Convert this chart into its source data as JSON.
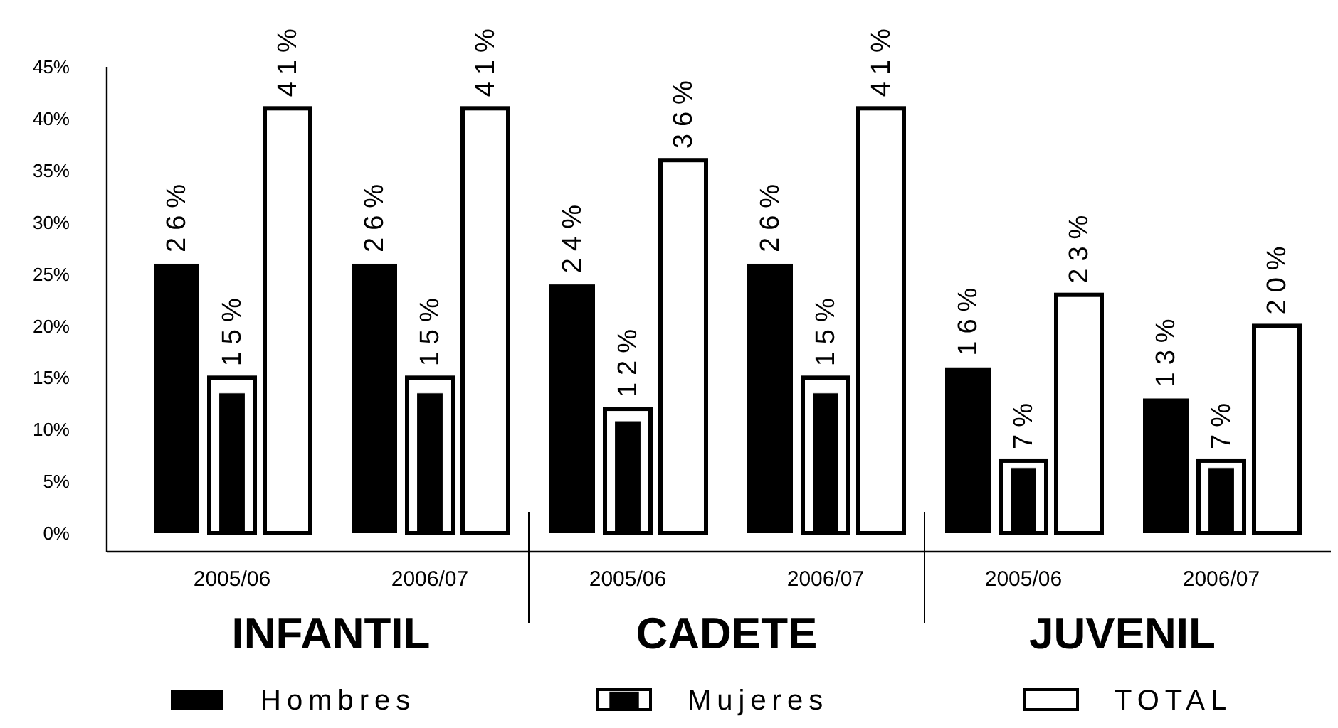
{
  "chart_data": {
    "type": "bar",
    "categories": [
      "2005/06",
      "2006/07",
      "2005/06",
      "2006/07",
      "2005/06",
      "2006/07"
    ],
    "annotations": [
      "INFANTIL",
      "CADETE",
      "JUVENIL"
    ],
    "series": [
      {
        "name": "Hombres",
        "color": "#000000",
        "values": [
          26,
          26,
          24,
          26,
          16,
          13
        ],
        "value_labels": [
          "26%",
          "26%",
          "24%",
          "26%",
          "16%",
          "13%"
        ]
      },
      {
        "name": "Mujeres",
        "color": "#000000",
        "values": [
          15,
          15,
          12,
          15,
          7,
          7
        ],
        "value_labels": [
          "15%",
          "15%",
          "12%",
          "15%",
          "7%",
          "7%"
        ]
      },
      {
        "name": "TOTAL",
        "color": "#ffffff",
        "values": [
          41,
          41,
          36,
          41,
          23,
          20
        ],
        "value_labels": [
          "41%",
          "41%",
          "36%",
          "41%",
          "23%",
          "20%"
        ]
      }
    ],
    "ylim": [
      0,
      45
    ],
    "yticks": [
      {
        "value": 0,
        "label": "0%"
      },
      {
        "value": 5,
        "label": "5%"
      },
      {
        "value": 10,
        "label": "10%"
      },
      {
        "value": 15,
        "label": "15%"
      },
      {
        "value": 20,
        "label": "20%"
      },
      {
        "value": 25,
        "label": "25%"
      },
      {
        "value": 30,
        "label": "30%"
      },
      {
        "value": 35,
        "label": "35%"
      },
      {
        "value": 40,
        "label": "40%"
      },
      {
        "value": 45,
        "label": "45%"
      }
    ],
    "legend": "bottom",
    "grid": false
  }
}
